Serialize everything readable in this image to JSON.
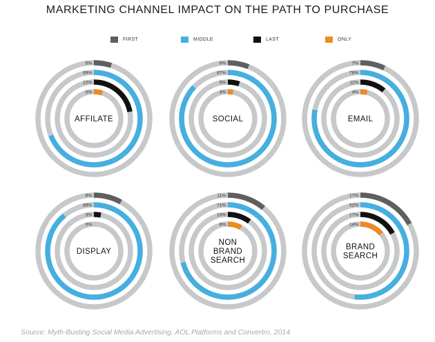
{
  "title": "MARKETING CHANNEL IMPACT ON THE PATH TO PURCHASE",
  "source": "Source: Myth-Busting Social Media Advertising, AOL Platforms and Convertro, 2014",
  "colors": {
    "track": "#c6c8ca",
    "first": "#5f5f5f",
    "middle": "#45afe0",
    "last": "#111111",
    "only": "#ec8a23"
  },
  "legend": [
    {
      "key": "first",
      "label": "FIRST"
    },
    {
      "key": "middle",
      "label": "MIDDLE"
    },
    {
      "key": "last",
      "label": "LAST"
    },
    {
      "key": "only",
      "label": "ONLY"
    }
  ],
  "chart_data": {
    "type": "radial-bar",
    "title": "MARKETING CHANNEL IMPACT ON THE PATH TO PURCHASE",
    "series_order": [
      "first",
      "middle",
      "last",
      "only"
    ],
    "channels": [
      {
        "lines": [
          "AFFILATE"
        ],
        "values": {
          "first": 5,
          "middle": 69,
          "last": 22,
          "only": 5
        },
        "labels": [
          "5%",
          "69%",
          "22%",
          "5%"
        ]
      },
      {
        "lines": [
          "SOCIAL"
        ],
        "values": {
          "first": 6,
          "middle": 87,
          "last": 5,
          "only": 3
        },
        "labels": [
          "6%",
          "87%",
          "5%",
          "3%"
        ]
      },
      {
        "lines": [
          "EMAIL"
        ],
        "values": {
          "first": 7,
          "middle": 78,
          "last": 11,
          "only": 4
        },
        "labels": [
          "7%",
          "78%",
          "11%",
          "4%"
        ]
      },
      {
        "lines": [
          "DISPLAY"
        ],
        "values": {
          "first": 8,
          "middle": 89,
          "last": 3,
          "only": 0
        },
        "labels": [
          "8%",
          "89%",
          "3%",
          "0%"
        ]
      },
      {
        "lines": [
          "NON",
          "BRAND",
          "SEARCH"
        ],
        "values": {
          "first": 11,
          "middle": 71,
          "last": 10,
          "only": 8
        },
        "labels": [
          "11%",
          "71%",
          "10%",
          "8%"
        ]
      },
      {
        "lines": [
          "BRAND",
          "SEARCH"
        ],
        "values": {
          "first": 17,
          "middle": 52,
          "last": 17,
          "only": 14
        },
        "labels": [
          "17%",
          "52%",
          "17%",
          "14%"
        ]
      }
    ]
  }
}
